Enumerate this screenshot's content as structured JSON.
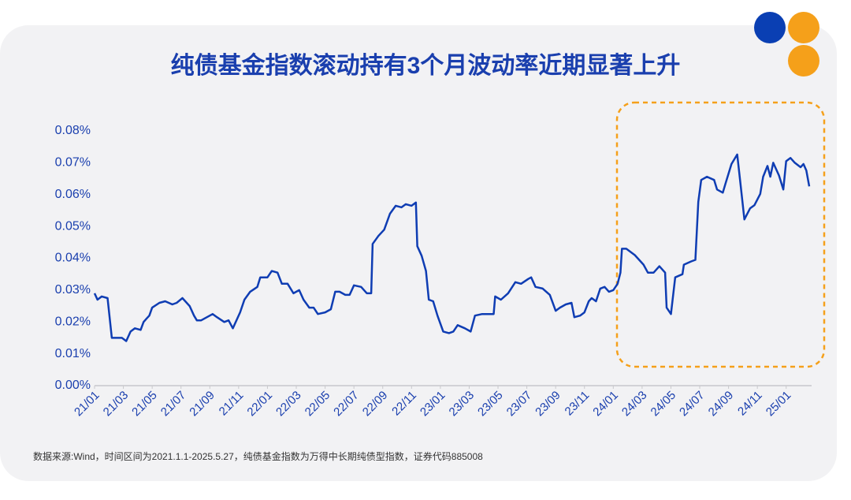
{
  "chart_data": {
    "type": "line",
    "title": "纯债基金指数滚动持有3个月波动率近期显著上升",
    "source": "数据来源:Wind，时间区间为2021.1.1-2025.5.27，纯债基金指数为万得中长期纯债型指数，证券代码885008",
    "color": "#0f3db3",
    "x": [
      0,
      0.2,
      0.5,
      0.9,
      1.2,
      1.9,
      2.2,
      2.5,
      2.8,
      3.2,
      3.4,
      3.6,
      3.8,
      4.0,
      4.5,
      4.9,
      5.4,
      5.7,
      6.1,
      6.6,
      6.9,
      7.1,
      7.4,
      7.8,
      8.2,
      8.5,
      9.0,
      9.3,
      9.6,
      10.1,
      10.4,
      10.8,
      11.3,
      11.5,
      12.0,
      12.3,
      12.7,
      13.0,
      13.4,
      13.8,
      14.2,
      14.5,
      14.9,
      15.2,
      15.5,
      16.0,
      16.4,
      16.7,
      17.0,
      17.4,
      17.7,
      18.0,
      18.5,
      18.9,
      19.2,
      19.3,
      19.7,
      20.1,
      20.5,
      20.9,
      21.3,
      21.6,
      22.0,
      22.3,
      22.4,
      22.7,
      23.0,
      23.2,
      23.5,
      23.8,
      24.2,
      24.6,
      24.9,
      25.2,
      25.7,
      26.1,
      26.4,
      26.9,
      27.7,
      27.8,
      28.2,
      28.7,
      29.2,
      29.6,
      30.1,
      30.3,
      30.6,
      31.1,
      31.6,
      32.0,
      32.3,
      32.7,
      33.1,
      33.3,
      33.7,
      34.0,
      34.3,
      34.5,
      34.8,
      35.1,
      35.4,
      35.7,
      36.0,
      36.3,
      36.5,
      36.6,
      36.9,
      37.5,
      38.1,
      38.4,
      38.8,
      39.2,
      39.6,
      39.7,
      40.0,
      40.3,
      40.8,
      40.9,
      41.4,
      41.7,
      41.9,
      42.1,
      42.5,
      43.0,
      43.2,
      43.6,
      43.8,
      44.2,
      44.6,
      44.8,
      45.1,
      45.5,
      45.8,
      46.2,
      46.4,
      46.7,
      46.9,
      47.1,
      47.5,
      47.8,
      48.0,
      48.3,
      48.6,
      49.0,
      49.2,
      49.4,
      49.6
    ],
    "values": [
      0.029,
      0.027,
      0.028,
      0.0275,
      0.015,
      0.015,
      0.014,
      0.017,
      0.018,
      0.0175,
      0.02,
      0.021,
      0.022,
      0.0245,
      0.026,
      0.0265,
      0.0255,
      0.026,
      0.0275,
      0.025,
      0.022,
      0.0205,
      0.0205,
      0.0215,
      0.0225,
      0.0215,
      0.02,
      0.0205,
      0.018,
      0.023,
      0.027,
      0.0295,
      0.031,
      0.034,
      0.034,
      0.036,
      0.0355,
      0.032,
      0.032,
      0.029,
      0.03,
      0.027,
      0.0245,
      0.0245,
      0.0225,
      0.023,
      0.024,
      0.0295,
      0.0295,
      0.0285,
      0.0285,
      0.0315,
      0.031,
      0.029,
      0.029,
      0.0445,
      0.047,
      0.049,
      0.054,
      0.0565,
      0.056,
      0.057,
      0.0565,
      0.0575,
      0.0438,
      0.0408,
      0.036,
      0.027,
      0.0265,
      0.022,
      0.017,
      0.0165,
      0.017,
      0.019,
      0.018,
      0.017,
      0.022,
      0.0225,
      0.0225,
      0.028,
      0.027,
      0.029,
      0.0325,
      0.032,
      0.0335,
      0.034,
      0.031,
      0.0305,
      0.0285,
      0.0235,
      0.0245,
      0.0255,
      0.026,
      0.0215,
      0.022,
      0.023,
      0.0265,
      0.0275,
      0.0265,
      0.0305,
      0.031,
      0.0295,
      0.03,
      0.032,
      0.0355,
      0.043,
      0.043,
      0.041,
      0.038,
      0.0355,
      0.0355,
      0.0375,
      0.0355,
      0.0245,
      0.0225,
      0.034,
      0.035,
      0.038,
      0.039,
      0.0395,
      0.0577,
      0.0646,
      0.0656,
      0.0646,
      0.0616,
      0.0606,
      0.0636,
      0.0696,
      0.0726,
      0.0646,
      0.0522,
      0.0557,
      0.0567,
      0.0602,
      0.0656,
      0.069,
      0.0656,
      0.07,
      0.066,
      0.0616,
      0.0705,
      0.0715,
      0.07,
      0.0686,
      0.0696,
      0.0676,
      0.0626
    ],
    "xlim": [
      0,
      49.6
    ],
    "xticks": [
      {
        "value": 0,
        "label": "21/01"
      },
      {
        "value": 2,
        "label": "21/03"
      },
      {
        "value": 4,
        "label": "21/05"
      },
      {
        "value": 6,
        "label": "21/07"
      },
      {
        "value": 8,
        "label": "21/09"
      },
      {
        "value": 10,
        "label": "21/11"
      },
      {
        "value": 12,
        "label": "22/01"
      },
      {
        "value": 14,
        "label": "22/03"
      },
      {
        "value": 16,
        "label": "22/05"
      },
      {
        "value": 18,
        "label": "22/07"
      },
      {
        "value": 20,
        "label": "22/09"
      },
      {
        "value": 22,
        "label": "22/11"
      },
      {
        "value": 24,
        "label": "23/01"
      },
      {
        "value": 26,
        "label": "23/03"
      },
      {
        "value": 28,
        "label": "23/05"
      },
      {
        "value": 30,
        "label": "23/07"
      },
      {
        "value": 32,
        "label": "23/09"
      },
      {
        "value": 34,
        "label": "23/11"
      },
      {
        "value": 36,
        "label": "24/01"
      },
      {
        "value": 38,
        "label": "24/03"
      },
      {
        "value": 40,
        "label": "24/05"
      },
      {
        "value": 42,
        "label": "24/07"
      },
      {
        "value": 44,
        "label": "24/09"
      },
      {
        "value": 46,
        "label": "24/11"
      },
      {
        "value": 48,
        "label": "25/01"
      }
    ],
    "ylim": [
      0,
      0.08
    ],
    "yticks": [
      {
        "value": 0,
        "label": "0.00%"
      },
      {
        "value": 0.01,
        "label": "0.01%"
      },
      {
        "value": 0.02,
        "label": "0.02%"
      },
      {
        "value": 0.03,
        "label": "0.03%"
      },
      {
        "value": 0.04,
        "label": "0.04%"
      },
      {
        "value": 0.05,
        "label": "0.05%"
      },
      {
        "value": 0.06,
        "label": "0.06%"
      },
      {
        "value": 0.07,
        "label": "0.07%"
      },
      {
        "value": 0.08,
        "label": "0.08%"
      }
    ]
  }
}
